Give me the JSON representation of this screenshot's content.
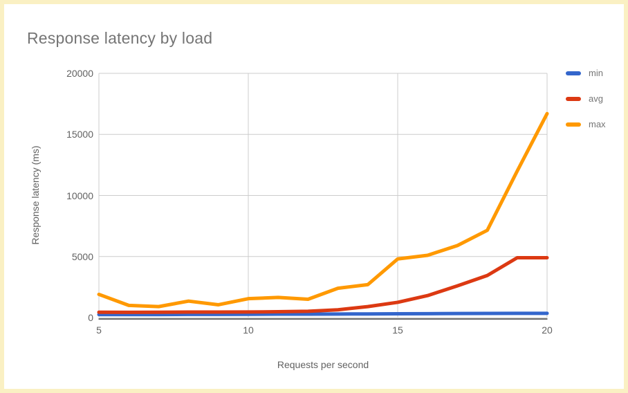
{
  "title": "Response latency by load",
  "frame": {
    "border_color": "#FAF0C3",
    "background": "#FFFFFF"
  },
  "chart_data": {
    "type": "line",
    "title": "Response latency by load",
    "xlabel": "Requests per second",
    "ylabel": "Response latency (ms)",
    "x": [
      5,
      6,
      7,
      8,
      9,
      10,
      11,
      12,
      13,
      14,
      15,
      16,
      17,
      18,
      19,
      20
    ],
    "series": [
      {
        "name": "min",
        "color": "#3366CC",
        "values": [
          250,
          250,
          250,
          260,
          260,
          270,
          280,
          280,
          290,
          300,
          310,
          320,
          330,
          340,
          350,
          350
        ]
      },
      {
        "name": "avg",
        "color": "#DC3912",
        "values": [
          440,
          430,
          440,
          450,
          450,
          460,
          480,
          520,
          640,
          900,
          1250,
          1800,
          2600,
          3450,
          4900,
          4900
        ]
      },
      {
        "name": "max",
        "color": "#FF9900",
        "values": [
          1900,
          1000,
          900,
          1350,
          1050,
          1550,
          1650,
          1500,
          2400,
          2700,
          4800,
          5100,
          5900,
          7150,
          12000,
          16700
        ]
      }
    ],
    "xlim": [
      5,
      20
    ],
    "ylim": [
      0,
      20000
    ],
    "x_ticks": [
      5,
      10,
      15,
      20
    ],
    "y_ticks": [
      0,
      5000,
      10000,
      15000,
      20000
    ],
    "grid": true,
    "legend_position": "top-right-outside",
    "colors": {
      "gridline": "#CCCCCC",
      "baseline": "#333333",
      "title": "#757575",
      "tick_label": "#616161",
      "legend_label": "#757575"
    }
  }
}
